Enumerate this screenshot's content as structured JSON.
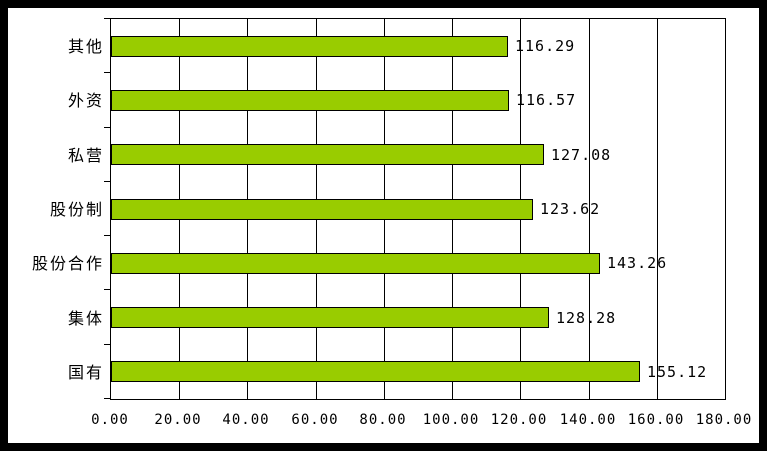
{
  "frame": {
    "border_color": "#000000",
    "background": "#FFFFFF"
  },
  "chart_data": {
    "type": "bar",
    "orientation": "horizontal",
    "title": "",
    "xlabel": "",
    "ylabel": "",
    "categories": [
      "其他",
      "外资",
      "私营",
      "股份制",
      "股份合作",
      "集体",
      "国有"
    ],
    "values": [
      116.29,
      116.57,
      127.08,
      123.62,
      143.26,
      128.28,
      155.12
    ],
    "value_labels": [
      "116.29",
      "116.57",
      "127.08",
      "123.62",
      "143.26",
      "128.28",
      "155.12"
    ],
    "xlim": [
      0,
      180
    ],
    "tick_interval": 20,
    "x_tick_labels": [
      "0.00",
      "20.00",
      "40.00",
      "60.00",
      "80.00",
      "100.00",
      "120.00",
      "140.00",
      "160.00",
      "180.00"
    ],
    "grid": "vertical-major-on",
    "legend": "none",
    "bar_color": "#99CC00",
    "bar_border_color": "#000000",
    "axis_color": "#000000",
    "plot_background": "#FFFFFF",
    "text_color": "#000000"
  }
}
